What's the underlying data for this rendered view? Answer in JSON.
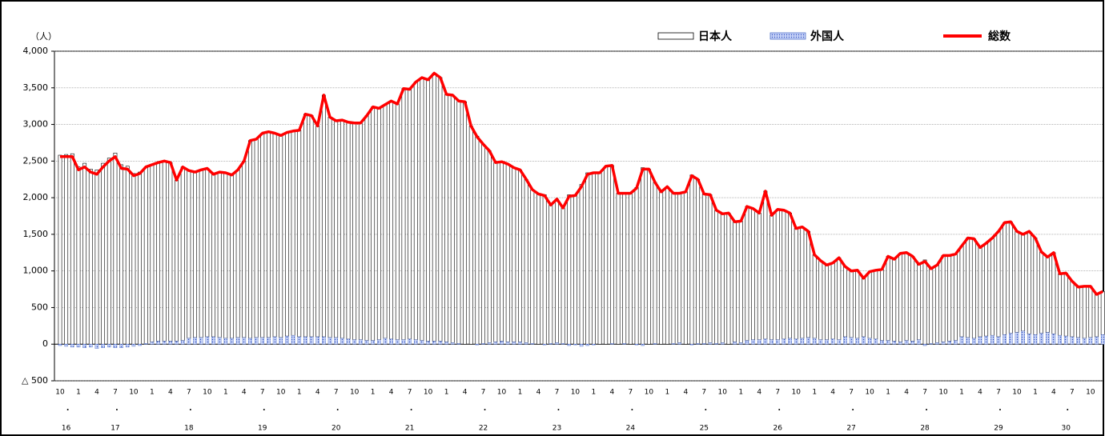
{
  "chart_data": {
    "type": "bar_line",
    "y_label": "（人）",
    "ylim": [
      -500,
      4000
    ],
    "yticks": [
      {
        "value": 4000,
        "label": "4,000"
      },
      {
        "value": 3500,
        "label": "3,500"
      },
      {
        "value": 3000,
        "label": "3,000"
      },
      {
        "value": 2500,
        "label": "2,500"
      },
      {
        "value": 2000,
        "label": "2,000"
      },
      {
        "value": 1500,
        "label": "1,500"
      },
      {
        "value": 1000,
        "label": "1,000"
      },
      500,
      0,
      {
        "value": -500,
        "label": "△ 500"
      }
    ],
    "grid": true,
    "legend": "top",
    "categories": [
      "10",
      null,
      null,
      "1",
      null,
      null,
      "4",
      null,
      null,
      "7",
      null,
      null,
      "10",
      null,
      null,
      "1",
      null,
      null,
      "4",
      null,
      null,
      "7",
      null,
      null,
      "10",
      null,
      null,
      "1",
      null,
      null,
      "4",
      null,
      null,
      "7",
      null,
      null,
      "10",
      null,
      null,
      "1",
      null,
      null,
      "4",
      null,
      null,
      "7",
      null,
      null,
      "10",
      null,
      null,
      "1",
      null,
      null,
      "4",
      null,
      null,
      "7",
      null,
      null,
      "10",
      null,
      null,
      "1",
      null,
      null,
      "4",
      null,
      null,
      "7",
      null,
      null,
      "10",
      null,
      null,
      "1",
      null,
      null,
      "4",
      null,
      null,
      "7",
      null,
      null,
      "10",
      null,
      null,
      "1",
      null,
      null,
      "4",
      null,
      null,
      "7",
      null,
      null,
      "10",
      null,
      null,
      "1",
      null,
      null,
      "4",
      null,
      null,
      "7",
      null,
      null,
      "10",
      null,
      null,
      "1",
      null,
      null,
      "4",
      null,
      null,
      "7",
      null,
      null,
      "10",
      null,
      null,
      "1",
      null,
      null,
      "4",
      null,
      null,
      "7",
      null,
      null,
      "10",
      null,
      null,
      "1",
      null,
      null,
      "4",
      null,
      null,
      "7",
      null,
      null,
      "10",
      null,
      null,
      "1",
      null,
      null,
      "4",
      null,
      null,
      "7",
      null,
      null,
      "10",
      null,
      null,
      "1",
      null,
      null,
      "4",
      null,
      null,
      "7",
      null,
      null,
      "10",
      null,
      null
    ],
    "years": [
      null,
      "16",
      null,
      null,
      null,
      null,
      null,
      null,
      null,
      "17",
      null,
      null,
      null,
      null,
      null,
      null,
      null,
      null,
      null,
      null,
      null,
      "18",
      null,
      null,
      null,
      null,
      null,
      null,
      null,
      null,
      null,
      null,
      null,
      "19",
      null,
      null,
      null,
      null,
      null,
      null,
      null,
      null,
      null,
      null,
      null,
      "20",
      null,
      null,
      null,
      null,
      null,
      null,
      null,
      null,
      null,
      null,
      null,
      "21",
      null,
      null,
      null,
      null,
      null,
      null,
      null,
      null,
      null,
      null,
      null,
      "22",
      null,
      null,
      null,
      null,
      null,
      null,
      null,
      null,
      null,
      null,
      null,
      "23",
      null,
      null,
      null,
      null,
      null,
      null,
      null,
      null,
      null,
      null,
      null,
      "24",
      null,
      null,
      null,
      null,
      null,
      null,
      null,
      null,
      null,
      null,
      null,
      "25",
      null,
      null,
      null,
      null,
      null,
      null,
      null,
      null,
      null,
      null,
      null,
      "26",
      null,
      null,
      null,
      null,
      null,
      null,
      null,
      null,
      null,
      null,
      null,
      "27",
      null,
      null,
      null,
      null,
      null,
      null,
      null,
      null,
      null,
      null,
      null,
      "28",
      null,
      null,
      null,
      null,
      null,
      null,
      null,
      null,
      null,
      null,
      null,
      "29",
      null,
      null,
      null,
      null,
      null,
      null,
      null,
      null,
      null,
      null,
      "30",
      null,
      null,
      null,
      null,
      null,
      null
    ],
    "series": [
      {
        "name": "日本人",
        "kind": "bar",
        "color": "#ffffff",
        "values": [
          2580,
          2590,
          2600,
          2420,
          2470,
          2390,
          2380,
          2470,
          2540,
          2610,
          2450,
          2430,
          2330,
          2350,
          2410,
          2420,
          2440,
          2460,
          2440,
          2200,
          2370,
          2290,
          2260,
          2290,
          2300,
          2220,
          2260,
          2260,
          2230,
          2290,
          2410,
          2700,
          2710,
          2790,
          2810,
          2780,
          2760,
          2780,
          2790,
          2820,
          3040,
          3020,
          2880,
          3300,
          3010,
          2960,
          2980,
          2960,
          2960,
          2960,
          3070,
          3190,
          3160,
          3190,
          3250,
          3220,
          3430,
          3410,
          3520,
          3590,
          3570,
          3660,
          3600,
          3380,
          3380,
          3310,
          3310,
          2980,
          2840,
          2720,
          2620,
          2450,
          2450,
          2430,
          2380,
          2350,
          2230,
          2100,
          2050,
          2040,
          1890,
          1960,
          1850,
          2040,
          2040,
          2180,
          2340,
          2350,
          2340,
          2430,
          2430,
          2060,
          2050,
          2060,
          2140,
          2410,
          2390,
          2200,
          2080,
          2150,
          2050,
          2040,
          2080,
          2310,
          2240,
          2040,
          2020,
          1820,
          1760,
          1790,
          1640,
          1660,
          1830,
          1790,
          1730,
          2020,
          1700,
          1780,
          1760,
          1710,
          1510,
          1520,
          1450,
          1140,
          1080,
          1020,
          1040,
          1120,
          960,
          910,
          930,
          800,
          910,
          940,
          970,
          1150,
          1120,
          1210,
          1200,
          1160,
          1030,
          1150,
          1020,
          1060,
          1180,
          1170,
          1180,
          1240,
          1360,
          1360,
          1220,
          1270,
          1330,
          1440,
          1530,
          1520,
          1380,
          1320,
          1400,
          1320,
          1110,
          1030,
          1110,
          840,
          860,
          760,
          690,
          710,
          700,
          580,
          590
        ]
      },
      {
        "name": "外国人",
        "kind": "bar",
        "color": "#8ea4e8",
        "values": [
          -20,
          -30,
          -40,
          -40,
          -50,
          -40,
          -60,
          -50,
          -40,
          -50,
          -50,
          -40,
          -30,
          -20,
          10,
          30,
          40,
          40,
          40,
          40,
          50,
          80,
          90,
          90,
          100,
          100,
          90,
          80,
          80,
          90,
          90,
          80,
          90,
          90,
          90,
          100,
          90,
          110,
          120,
          100,
          100,
          100,
          100,
          100,
          90,
          90,
          80,
          70,
          60,
          60,
          50,
          50,
          60,
          80,
          70,
          60,
          60,
          70,
          60,
          50,
          40,
          40,
          40,
          30,
          20,
          10,
          0,
          0,
          -10,
          10,
          20,
          30,
          40,
          30,
          30,
          30,
          20,
          10,
          0,
          -10,
          10,
          20,
          10,
          -20,
          -10,
          -30,
          -20,
          -10,
          0,
          0,
          10,
          0,
          10,
          0,
          -10,
          -20,
          0,
          10,
          0,
          0,
          10,
          20,
          0,
          -10,
          10,
          10,
          20,
          10,
          20,
          0,
          30,
          20,
          50,
          60,
          60,
          70,
          60,
          60,
          70,
          80,
          70,
          80,
          90,
          80,
          60,
          60,
          70,
          60,
          100,
          90,
          80,
          100,
          80,
          70,
          50,
          50,
          40,
          30,
          50,
          40,
          60,
          -20,
          10,
          20,
          30,
          40,
          50,
          100,
          90,
          80,
          100,
          110,
          120,
          100,
          130,
          150,
          160,
          180,
          140,
          130,
          150,
          160,
          140,
          120,
          110,
          100,
          90,
          80,
          90,
          100,
          130
        ]
      },
      {
        "name": "総数",
        "kind": "line",
        "color": "#ff0000",
        "values": [
          2560,
          2560,
          2560,
          2380,
          2420,
          2350,
          2320,
          2420,
          2500,
          2560,
          2400,
          2390,
          2300,
          2330,
          2420,
          2450,
          2480,
          2500,
          2480,
          2240,
          2420,
          2370,
          2350,
          2380,
          2400,
          2320,
          2350,
          2340,
          2310,
          2380,
          2500,
          2780,
          2800,
          2880,
          2900,
          2880,
          2850,
          2890,
          2910,
          2920,
          3140,
          3120,
          2980,
          3400,
          3100,
          3050,
          3060,
          3030,
          3020,
          3020,
          3120,
          3240,
          3220,
          3270,
          3320,
          3280,
          3490,
          3480,
          3580,
          3640,
          3610,
          3700,
          3640,
          3410,
          3400,
          3320,
          3310,
          2980,
          2830,
          2730,
          2640,
          2480,
          2490,
          2460,
          2410,
          2380,
          2250,
          2110,
          2050,
          2030,
          1900,
          1980,
          1860,
          2020,
          2030,
          2150,
          2320,
          2340,
          2340,
          2430,
          2440,
          2060,
          2060,
          2060,
          2130,
          2390,
          2390,
          2210,
          2080,
          2150,
          2060,
          2060,
          2080,
          2300,
          2250,
          2050,
          2040,
          1830,
          1780,
          1790,
          1670,
          1680,
          1880,
          1850,
          1790,
          2090,
          1760,
          1840,
          1830,
          1790,
          1580,
          1600,
          1540,
          1220,
          1140,
          1080,
          1110,
          1180,
          1060,
          1000,
          1010,
          900,
          990,
          1010,
          1020,
          1200,
          1160,
          1240,
          1250,
          1200,
          1090,
          1130,
          1030,
          1080,
          1210,
          1210,
          1230,
          1340,
          1450,
          1440,
          1320,
          1380,
          1450,
          1540,
          1660,
          1670,
          1540,
          1500,
          1540,
          1450,
          1260,
          1190,
          1250,
          960,
          970,
          860,
          780,
          790,
          790,
          680,
          720
        ]
      }
    ]
  }
}
